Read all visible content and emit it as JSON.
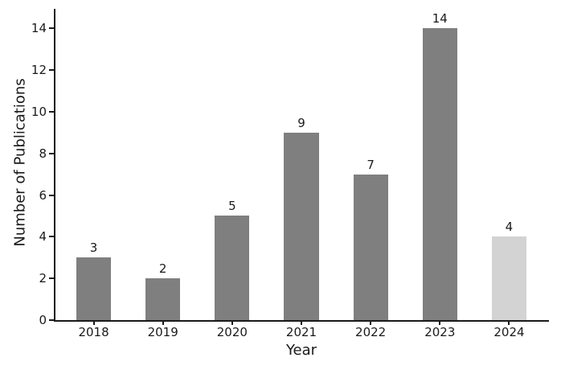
{
  "figure": {
    "background": "#ffffff",
    "axis_color": "#1a1a1a",
    "text_color": "#1a1a1a"
  },
  "chart_data": {
    "type": "bar",
    "title": "",
    "xlabel": "Year",
    "ylabel": "Number of Publications",
    "categories": [
      "2018",
      "2019",
      "2020",
      "2021",
      "2022",
      "2023",
      "2024"
    ],
    "values": [
      3,
      2,
      5,
      9,
      7,
      14,
      4
    ],
    "bar_colors": [
      "#7f7f7f",
      "#7f7f7f",
      "#7f7f7f",
      "#7f7f7f",
      "#7f7f7f",
      "#7f7f7f",
      "#d3d3d3"
    ],
    "default_bar_color": "#7f7f7f",
    "highlight_bar_color": "#d3d3d3",
    "value_labels_shown": true,
    "yticks": [
      0,
      2,
      4,
      6,
      8,
      10,
      12,
      14
    ],
    "ytick_labels": [
      "0",
      "2",
      "4",
      "6",
      "8",
      "10",
      "12",
      "14"
    ],
    "ylim": [
      0,
      14.9
    ],
    "xlim": [
      -0.575,
      6.575
    ],
    "bar_width_units": 0.5,
    "grid": false,
    "legend": null
  }
}
